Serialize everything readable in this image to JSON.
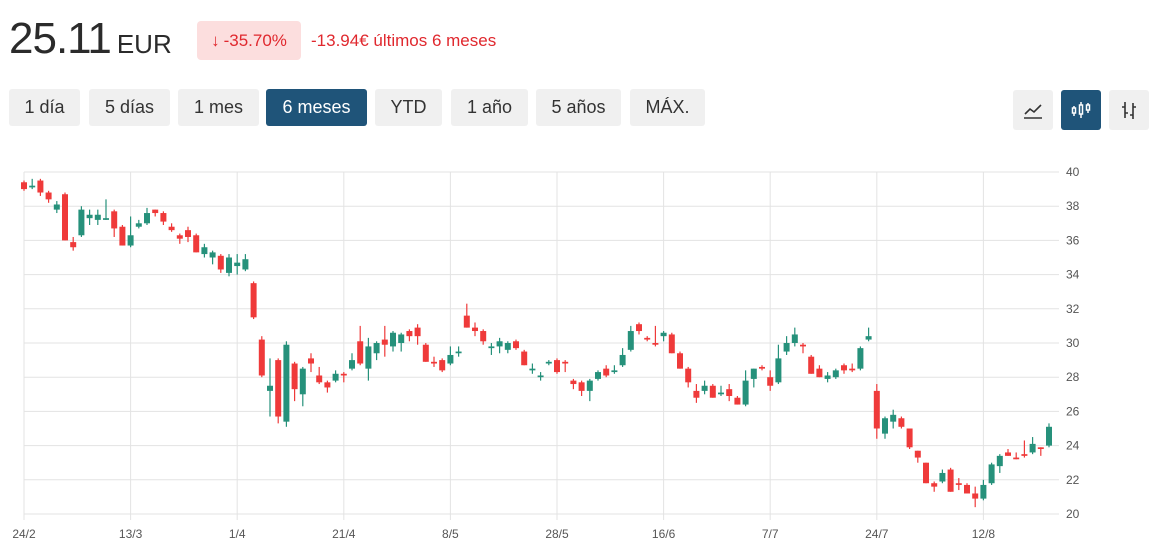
{
  "header": {
    "price": "25.11",
    "currency": "EUR",
    "change_pct": "-35.70%",
    "change_icon": "arrow-down-icon",
    "change_abs": "-13.94€ últimos 6 meses"
  },
  "ranges": [
    {
      "label": "1 día",
      "active": false
    },
    {
      "label": "5 días",
      "active": false
    },
    {
      "label": "1 mes",
      "active": false
    },
    {
      "label": "6 meses",
      "active": true
    },
    {
      "label": "YTD",
      "active": false
    },
    {
      "label": "1 año",
      "active": false
    },
    {
      "label": "5 años",
      "active": false
    },
    {
      "label": "MÁX.",
      "active": false
    }
  ],
  "chart_types": [
    {
      "icon": "line-chart-icon",
      "active": false
    },
    {
      "icon": "candlestick-chart-icon",
      "active": true
    },
    {
      "icon": "ohlc-bar-chart-icon",
      "active": false
    }
  ],
  "colors": {
    "up": "#26917b",
    "down": "#ef3a3a",
    "accent": "#1f5479",
    "negative": "#e0282e"
  },
  "chart_data": {
    "type": "candlestick",
    "ylim": [
      20,
      40
    ],
    "yticks": [
      20,
      22,
      24,
      26,
      28,
      30,
      32,
      34,
      36,
      38,
      40
    ],
    "xticks": [
      {
        "label": "24/2",
        "index": 0
      },
      {
        "label": "13/3",
        "index": 13
      },
      {
        "label": "1/4",
        "index": 26
      },
      {
        "label": "21/4",
        "index": 39
      },
      {
        "label": "8/5",
        "index": 52
      },
      {
        "label": "28/5",
        "index": 65
      },
      {
        "label": "16/6",
        "index": 78
      },
      {
        "label": "7/7",
        "index": 91
      },
      {
        "label": "24/7",
        "index": 104
      },
      {
        "label": "12/8",
        "index": 117
      }
    ],
    "grid": true,
    "ohlc_fields": [
      "open",
      "high",
      "low",
      "close"
    ],
    "ohlc": [
      [
        39.4,
        39.5,
        38.9,
        39.0
      ],
      [
        39.1,
        39.6,
        39.0,
        39.2
      ],
      [
        39.5,
        39.6,
        38.6,
        38.8
      ],
      [
        38.8,
        38.9,
        38.2,
        38.4
      ],
      [
        37.8,
        38.3,
        37.6,
        38.1
      ],
      [
        38.7,
        38.8,
        36.0,
        36.0
      ],
      [
        35.9,
        36.2,
        35.4,
        35.6
      ],
      [
        36.3,
        38.0,
        36.2,
        37.8
      ],
      [
        37.3,
        37.8,
        36.9,
        37.5
      ],
      [
        37.2,
        37.8,
        36.9,
        37.5
      ],
      [
        37.2,
        38.4,
        37.2,
        37.3
      ],
      [
        37.7,
        37.8,
        36.2,
        36.7
      ],
      [
        36.8,
        36.9,
        35.7,
        35.7
      ],
      [
        35.7,
        37.4,
        35.6,
        36.3
      ],
      [
        36.8,
        37.2,
        36.7,
        37.0
      ],
      [
        37.0,
        37.9,
        36.9,
        37.6
      ],
      [
        37.8,
        37.8,
        37.4,
        37.6
      ],
      [
        37.6,
        37.7,
        36.9,
        37.1
      ],
      [
        36.8,
        37.0,
        36.5,
        36.6
      ],
      [
        36.3,
        36.4,
        35.8,
        36.1
      ],
      [
        36.6,
        36.8,
        35.9,
        36.2
      ],
      [
        36.3,
        36.4,
        35.3,
        35.3
      ],
      [
        35.2,
        35.8,
        35.0,
        35.6
      ],
      [
        35.0,
        35.4,
        34.6,
        35.3
      ],
      [
        35.1,
        35.2,
        34.1,
        34.3
      ],
      [
        34.1,
        35.2,
        33.9,
        35.0
      ],
      [
        34.5,
        35.2,
        34.0,
        34.7
      ],
      [
        34.3,
        35.2,
        34.2,
        34.9
      ],
      [
        33.5,
        33.6,
        31.4,
        31.5
      ],
      [
        30.2,
        30.4,
        28.0,
        28.1
      ],
      [
        27.2,
        29.1,
        25.7,
        27.5
      ],
      [
        29.0,
        29.1,
        25.3,
        25.7
      ],
      [
        25.4,
        30.1,
        25.1,
        29.9
      ],
      [
        28.8,
        28.9,
        26.6,
        27.3
      ],
      [
        27.0,
        28.6,
        26.3,
        28.5
      ],
      [
        29.1,
        29.4,
        28.3,
        28.8
      ],
      [
        28.1,
        28.6,
        27.6,
        27.7
      ],
      [
        27.7,
        27.8,
        27.1,
        27.4
      ],
      [
        27.8,
        28.4,
        27.7,
        28.2
      ],
      [
        28.2,
        28.3,
        27.7,
        28.1
      ],
      [
        28.5,
        29.4,
        28.4,
        29.0
      ],
      [
        30.1,
        31.0,
        28.7,
        28.8
      ],
      [
        28.5,
        30.3,
        27.8,
        29.8
      ],
      [
        29.4,
        30.1,
        29.0,
        30.0
      ],
      [
        30.2,
        31.0,
        29.2,
        29.9
      ],
      [
        29.8,
        30.7,
        29.5,
        30.6
      ],
      [
        30.0,
        30.6,
        29.5,
        30.5
      ],
      [
        30.7,
        30.8,
        30.1,
        30.4
      ],
      [
        30.9,
        31.1,
        29.9,
        30.4
      ],
      [
        29.9,
        30.0,
        28.9,
        28.9
      ],
      [
        28.9,
        29.2,
        28.6,
        28.8
      ],
      [
        29.0,
        29.1,
        28.3,
        28.4
      ],
      [
        28.8,
        29.8,
        28.7,
        29.3
      ],
      [
        29.4,
        29.8,
        29.2,
        29.5
      ],
      [
        31.6,
        32.3,
        30.9,
        30.9
      ],
      [
        30.9,
        31.2,
        30.4,
        30.7
      ],
      [
        30.7,
        30.8,
        29.9,
        30.1
      ],
      [
        29.7,
        30.0,
        29.3,
        29.8
      ],
      [
        29.8,
        30.3,
        29.4,
        30.1
      ],
      [
        29.6,
        30.1,
        29.4,
        30.0
      ],
      [
        30.1,
        30.2,
        29.6,
        29.7
      ],
      [
        29.5,
        29.6,
        28.7,
        28.7
      ],
      [
        28.4,
        28.8,
        28.2,
        28.5
      ],
      [
        28.0,
        28.3,
        27.8,
        28.1
      ],
      [
        28.8,
        29.0,
        28.7,
        28.9
      ],
      [
        29.0,
        29.1,
        28.2,
        28.3
      ],
      [
        28.9,
        29.0,
        28.3,
        28.8
      ],
      [
        27.8,
        27.9,
        27.3,
        27.6
      ],
      [
        27.7,
        27.8,
        26.9,
        27.2
      ],
      [
        27.2,
        27.9,
        26.6,
        27.8
      ],
      [
        27.9,
        28.4,
        27.8,
        28.3
      ],
      [
        28.5,
        28.7,
        28.0,
        28.1
      ],
      [
        28.3,
        28.7,
        28.2,
        28.4
      ],
      [
        28.7,
        29.7,
        28.6,
        29.3
      ],
      [
        29.6,
        31.0,
        29.5,
        30.7
      ],
      [
        31.1,
        31.2,
        30.5,
        30.7
      ],
      [
        30.3,
        30.4,
        30.1,
        30.2
      ],
      [
        30.0,
        31.0,
        29.8,
        29.9
      ],
      [
        30.4,
        30.7,
        30.1,
        30.6
      ],
      [
        30.5,
        30.6,
        29.4,
        29.4
      ],
      [
        29.4,
        29.5,
        28.5,
        28.5
      ],
      [
        28.5,
        28.6,
        27.4,
        27.7
      ],
      [
        27.2,
        27.6,
        26.5,
        26.8
      ],
      [
        27.2,
        27.8,
        27.0,
        27.5
      ],
      [
        27.5,
        27.6,
        26.8,
        26.8
      ],
      [
        27.0,
        27.5,
        26.9,
        27.1
      ],
      [
        27.3,
        27.6,
        26.6,
        26.9
      ],
      [
        26.8,
        26.9,
        26.4,
        26.4
      ],
      [
        26.4,
        28.4,
        26.3,
        27.8
      ],
      [
        27.9,
        28.5,
        27.4,
        28.5
      ],
      [
        28.6,
        28.7,
        28.4,
        28.5
      ],
      [
        28.0,
        28.4,
        27.2,
        27.5
      ],
      [
        27.7,
        29.9,
        27.6,
        29.1
      ],
      [
        29.5,
        30.4,
        29.3,
        30.0
      ],
      [
        30.0,
        30.9,
        29.8,
        30.5
      ],
      [
        29.9,
        30.0,
        29.4,
        29.8
      ],
      [
        29.2,
        29.3,
        28.2,
        28.2
      ],
      [
        28.5,
        28.7,
        28.0,
        28.0
      ],
      [
        27.9,
        28.3,
        27.7,
        28.1
      ],
      [
        28.0,
        28.5,
        27.9,
        28.4
      ],
      [
        28.7,
        28.8,
        28.2,
        28.4
      ],
      [
        28.5,
        28.8,
        28.3,
        28.4
      ],
      [
        28.5,
        29.8,
        28.4,
        29.7
      ],
      [
        30.2,
        30.9,
        30.1,
        30.4
      ],
      [
        27.2,
        27.6,
        24.4,
        25.0
      ],
      [
        24.7,
        25.7,
        24.4,
        25.6
      ],
      [
        25.4,
        26.1,
        25.0,
        25.8
      ],
      [
        25.6,
        25.7,
        25.0,
        25.1
      ],
      [
        25.0,
        25.0,
        23.8,
        23.9
      ],
      [
        23.7,
        23.7,
        23.0,
        23.3
      ],
      [
        23.0,
        23.0,
        21.8,
        21.8
      ],
      [
        21.8,
        21.9,
        21.3,
        21.6
      ],
      [
        21.9,
        22.6,
        21.8,
        22.4
      ],
      [
        22.6,
        22.7,
        21.3,
        21.3
      ],
      [
        21.8,
        22.1,
        21.4,
        21.7
      ],
      [
        21.7,
        21.8,
        21.2,
        21.2
      ],
      [
        21.2,
        21.6,
        20.4,
        20.9
      ],
      [
        20.9,
        22.0,
        20.8,
        21.7
      ],
      [
        21.8,
        23.0,
        21.7,
        22.9
      ],
      [
        22.8,
        23.5,
        22.4,
        23.4
      ],
      [
        23.6,
        23.8,
        23.4,
        23.4
      ],
      [
        23.3,
        23.6,
        23.2,
        23.2
      ],
      [
        23.5,
        24.3,
        23.3,
        23.4
      ],
      [
        23.6,
        24.5,
        23.5,
        24.1
      ],
      [
        23.9,
        23.9,
        23.4,
        23.8
      ],
      [
        24.0,
        25.3,
        23.9,
        25.1
      ]
    ]
  }
}
